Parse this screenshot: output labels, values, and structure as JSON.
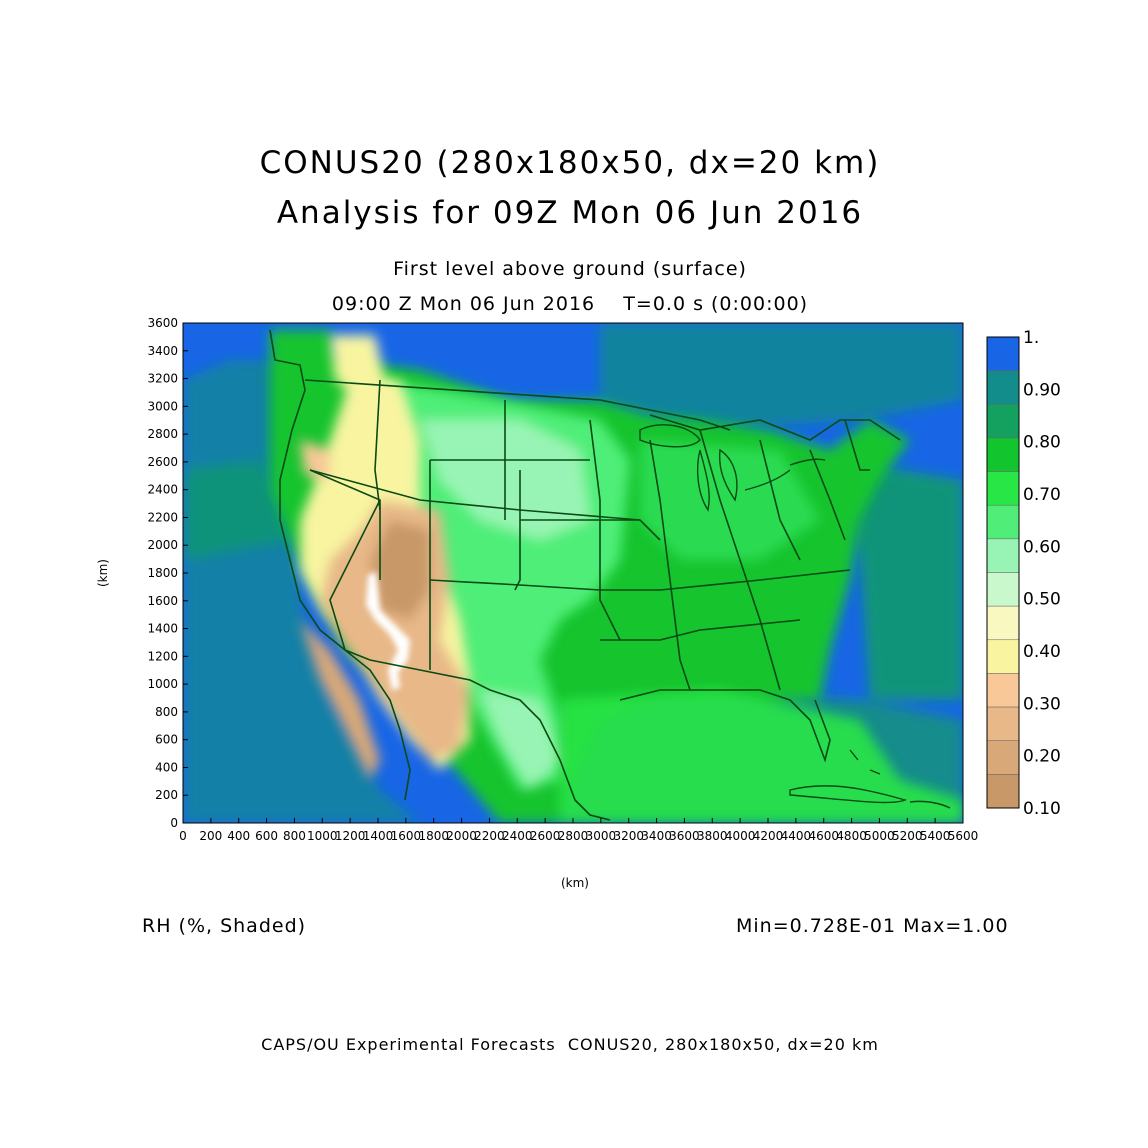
{
  "header": {
    "title_line1": "CONUS20 (280x180x50, dx=20 km)",
    "title_line2": "Analysis for 09Z Mon 06 Jun 2016",
    "level": "First level above ground (surface)",
    "valid_time": "09:00 Z Mon 06 Jun 2016    T=0.0 s (0:00:00)"
  },
  "map": {
    "xlabel": "(km)",
    "ylabel": "(km)",
    "xlim": [
      0,
      5600
    ],
    "ylim": [
      0,
      3600
    ],
    "x_ticks": [
      "0",
      "200",
      "400",
      "600",
      "800",
      "1000",
      "1200",
      "1400",
      "1600",
      "1800",
      "2000",
      "2200",
      "2400",
      "2600",
      "2800",
      "3000",
      "3200",
      "3400",
      "3600",
      "3800",
      "4000",
      "4200",
      "4400",
      "4600",
      "4800",
      "5000",
      "5200",
      "5400",
      "5600"
    ],
    "y_ticks": [
      "0",
      "200",
      "400",
      "600",
      "800",
      "1000",
      "1200",
      "1400",
      "1600",
      "1800",
      "2000",
      "2200",
      "2400",
      "2600",
      "2800",
      "3000",
      "3200",
      "3400",
      "3600"
    ],
    "colors": {
      "ocean_high": "#1866e6",
      "land_moist": "#2ee05a",
      "land_dry": "#c89868",
      "boundary": "#0a4a14"
    }
  },
  "legend": {
    "labels": [
      "1.",
      "0.90",
      "0.80",
      "0.70",
      "0.60",
      "0.50",
      "0.40",
      "0.30",
      "0.20",
      "0.10"
    ],
    "colors": [
      "#1866e6",
      "#138c8c",
      "#14a05e",
      "#12c42e",
      "#28e646",
      "#50ee78",
      "#98f4b4",
      "#c8f8cc",
      "#f8f8c0",
      "#f8f4a0",
      "#f8c898",
      "#e8b888",
      "#d8a878",
      "#c89868"
    ]
  },
  "footer": {
    "variable": "RH (%, Shaded)",
    "minmax": "Min=0.728E-01 Max=1.00",
    "credit": "CAPS/OU Experimental Forecasts  CONUS20, 280x180x50, dx=20 km"
  }
}
